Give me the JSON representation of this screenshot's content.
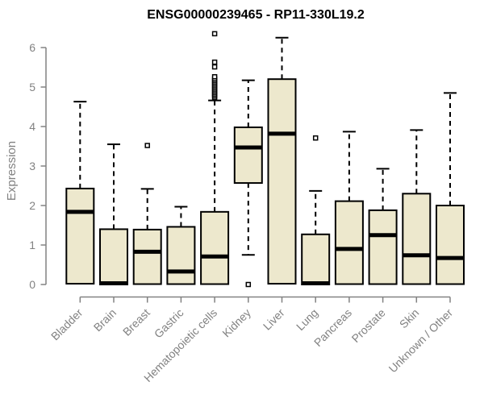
{
  "chart_data": {
    "type": "boxplot",
    "title": "ENSG00000239465 - RP11-330L19.2",
    "ylabel": "Expression",
    "xlabel": "",
    "ylim": [
      0,
      6
    ],
    "yticks": [
      0,
      1,
      2,
      3,
      4,
      5,
      6
    ],
    "grid": false,
    "legend": false,
    "x_tick_label_rotation_deg": 45,
    "colors": {
      "box_fill": "#EDE8CD",
      "box_border": "#000000",
      "median": "#000000",
      "whisker": "#000000",
      "outlier_fill": "#ffffff",
      "axis": "#828282",
      "title": "#000000",
      "background": "#ffffff"
    },
    "categories": [
      "Bladder",
      "Brain",
      "Breast",
      "Gastric",
      "Hematopoietic cells",
      "Kidney",
      "Liver",
      "Lung",
      "Pancreas",
      "Prostate",
      "Skin",
      "Unknown / Other"
    ],
    "series": [
      {
        "category": "Bladder",
        "whisker_low": 0.02,
        "q1": 0.02,
        "median": 1.84,
        "q3": 2.43,
        "whisker_high": 4.63,
        "outliers": []
      },
      {
        "category": "Brain",
        "whisker_low": 0.0,
        "q1": 0.0,
        "median": 0.03,
        "q3": 1.4,
        "whisker_high": 3.55,
        "outliers": []
      },
      {
        "category": "Breast",
        "whisker_low": 0.01,
        "q1": 0.01,
        "median": 0.83,
        "q3": 1.39,
        "whisker_high": 2.42,
        "outliers": [
          3.52
        ]
      },
      {
        "category": "Gastric",
        "whisker_low": 0.01,
        "q1": 0.01,
        "median": 0.33,
        "q3": 1.46,
        "whisker_high": 1.97,
        "outliers": []
      },
      {
        "category": "Hematopoietic cells",
        "whisker_low": 0.01,
        "q1": 0.01,
        "median": 0.71,
        "q3": 1.84,
        "whisker_high": 4.66,
        "outliers": [
          4.73,
          4.77,
          4.81,
          4.85,
          4.89,
          4.93,
          4.97,
          5.01,
          5.05,
          5.09,
          5.13,
          5.17,
          5.21,
          5.26,
          5.51,
          5.63,
          6.35
        ]
      },
      {
        "category": "Kidney",
        "whisker_low": 0.75,
        "q1": 2.57,
        "median": 3.47,
        "q3": 3.98,
        "whisker_high": 5.17,
        "outliers": [
          0.0
        ]
      },
      {
        "category": "Liver",
        "whisker_low": 0.02,
        "q1": 0.02,
        "median": 3.82,
        "q3": 5.2,
        "whisker_high": 6.25,
        "outliers": []
      },
      {
        "category": "Lung",
        "whisker_low": 0.0,
        "q1": 0.0,
        "median": 0.03,
        "q3": 1.27,
        "whisker_high": 2.37,
        "outliers": [
          3.71
        ]
      },
      {
        "category": "Pancreas",
        "whisker_low": 0.01,
        "q1": 0.01,
        "median": 0.9,
        "q3": 2.11,
        "whisker_high": 3.87,
        "outliers": []
      },
      {
        "category": "Prostate",
        "whisker_low": 0.01,
        "q1": 0.01,
        "median": 1.25,
        "q3": 1.88,
        "whisker_high": 2.93,
        "outliers": []
      },
      {
        "category": "Skin",
        "whisker_low": 0.01,
        "q1": 0.01,
        "median": 0.74,
        "q3": 2.3,
        "whisker_high": 3.91,
        "outliers": []
      },
      {
        "category": "Unknown / Other",
        "whisker_low": 0.01,
        "q1": 0.01,
        "median": 0.67,
        "q3": 2.0,
        "whisker_high": 4.85,
        "outliers": []
      }
    ]
  }
}
